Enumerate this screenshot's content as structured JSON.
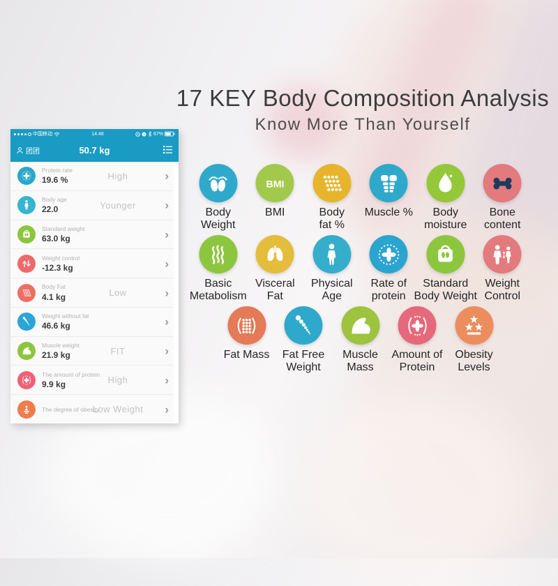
{
  "title": "17 KEY Body Composition Analysis",
  "subtitle": "Know More Than Yourself",
  "colors": {
    "app_bar": "#1a9bc3",
    "bone_glyph": "#20395e"
  },
  "phone": {
    "status_bar": {
      "carrier": "中国移动",
      "time": "14:48",
      "battery": "67%"
    },
    "header": {
      "user_name": "团团",
      "weight": "50.7 kg"
    },
    "rows": [
      {
        "icon": "protein-rate-icon",
        "color": "#2aa8c8",
        "label": "Protein rate",
        "value": "19.6 %",
        "status": "High"
      },
      {
        "icon": "body-age-icon",
        "color": "#35b5cf",
        "label": "Body age",
        "value": "22.0",
        "status": "Younger"
      },
      {
        "icon": "standard-weight-icon",
        "color": "#8cc63f",
        "label": "Standard weight",
        "value": "63.0 kg",
        "status": ""
      },
      {
        "icon": "weight-control-icon",
        "color": "#ee6a6a",
        "label": "Weight control",
        "value": "-12.3 kg",
        "status": ""
      },
      {
        "icon": "body-fat-icon",
        "color": "#ed6e62",
        "label": "Body Fat",
        "value": "4.1 kg",
        "status": "Low"
      },
      {
        "icon": "weight-without-fat-icon",
        "color": "#2aa5d5",
        "label": "Weight without fat",
        "value": "46.6 kg",
        "status": ""
      },
      {
        "icon": "muscle-weight-icon",
        "color": "#8cc63f",
        "label": "Muscle weight",
        "value": "21.9 kg",
        "status": "FIT"
      },
      {
        "icon": "amount-of-protein-icon",
        "color": "#ef6276",
        "label": "The amount of protein",
        "value": "9.9 kg",
        "status": "High"
      },
      {
        "icon": "degree-of-obesity-icon",
        "color": "#ef7c4d",
        "label": "The degree of obesity",
        "value": "",
        "status": "Low Weight"
      }
    ]
  },
  "grid": {
    "rows": [
      [
        {
          "icon": "feet-icon",
          "color": "#2fa9cb",
          "label": "Body\nWeight"
        },
        {
          "icon": "bmi-icon",
          "color": "#a2c94c",
          "label": "BMI"
        },
        {
          "icon": "fat-dots-icon",
          "color": "#e6b52c",
          "label": "Body\nfat %"
        },
        {
          "icon": "muscle-torso-icon",
          "color": "#2fa9cb",
          "label": "Muscle %"
        },
        {
          "icon": "water-drop-icon",
          "color": "#94c838",
          "label": "Body\nmoisture"
        },
        {
          "icon": "bone-icon",
          "color": "#e37a7e",
          "label": "Bone\ncontent"
        }
      ],
      [
        {
          "icon": "steam-icon",
          "color": "#8cc63f",
          "label": "Basic\nMetabolism"
        },
        {
          "icon": "lungs-icon",
          "color": "#e5bd3c",
          "label": "Visceral\nFat"
        },
        {
          "icon": "person-icon",
          "color": "#34aecb",
          "label": "Physical\nAge"
        },
        {
          "icon": "protein-ring-icon",
          "color": "#2ba5cf",
          "label": "Rate of\nprotein"
        },
        {
          "icon": "scale-icon",
          "color": "#8cc63f",
          "label": "Standard\nBody Weight"
        },
        {
          "icon": "weight-control-people-icon",
          "color": "#e37a7e",
          "label": "Weight\nControl"
        }
      ],
      [
        {
          "icon": "fat-mass-icon",
          "color": "#e57a59",
          "label": "Fat Mass"
        },
        {
          "icon": "fat-free-icon",
          "color": "#2fa9cb",
          "label": "Fat Free\nWeight"
        },
        {
          "icon": "muscle-arm-icon",
          "color": "#9dc33f",
          "label": "Muscle\nMass"
        },
        {
          "icon": "amount-protein-icon",
          "color": "#e5697a",
          "label": "Amount of\nProtein"
        },
        {
          "icon": "obesity-stars-icon",
          "color": "#ec8d5e",
          "label": "Obesity\nLevels"
        }
      ]
    ]
  }
}
